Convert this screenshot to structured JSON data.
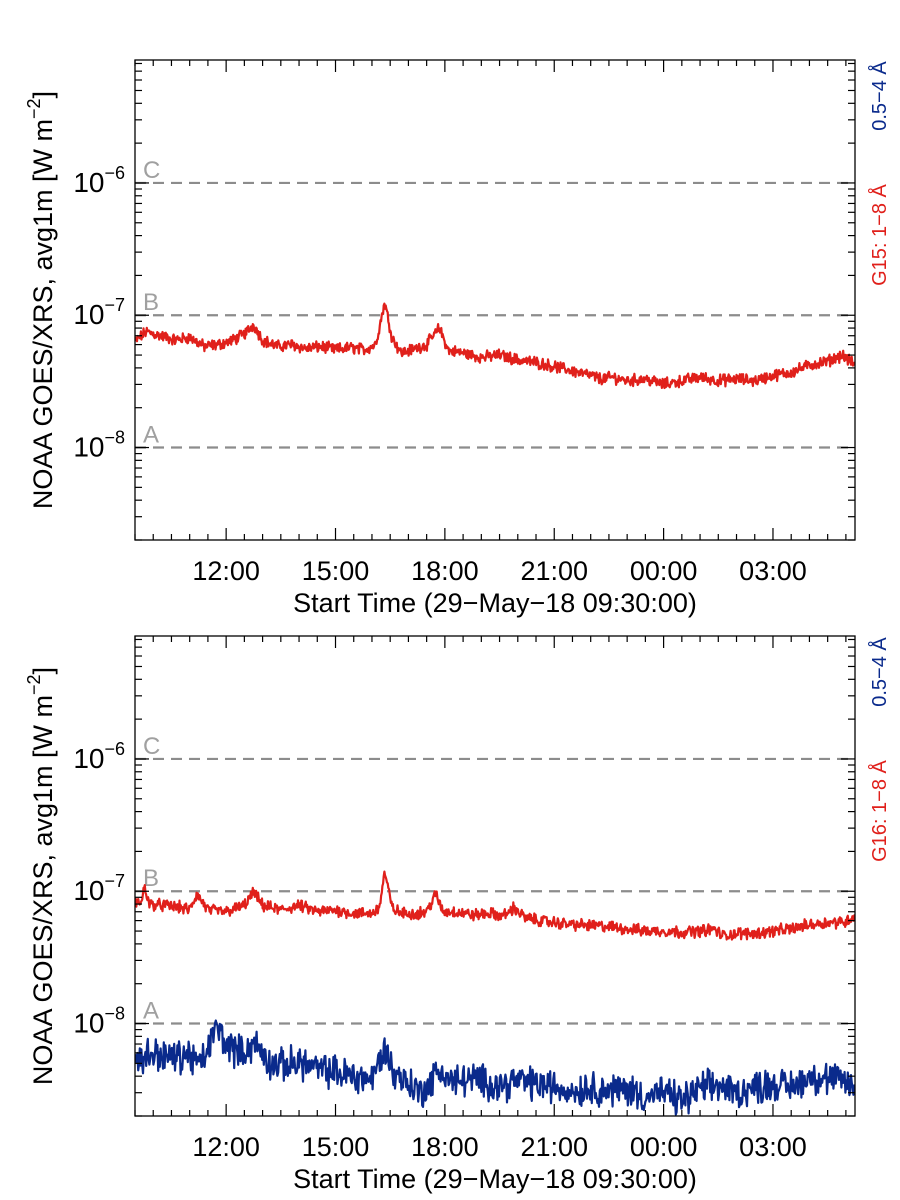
{
  "chart_data": [
    {
      "type": "line",
      "ylabel_main": "NOAA GOES/XRS, avg1m [W m",
      "ylabel_sup": "−2",
      "ylabel_end": "]",
      "xlabel": "Start Time (29−May−18 09:30:00)",
      "y_scale": "log",
      "ylim": [
        2e-09,
        8.5e-06
      ],
      "y_ticks": [
        {
          "value": 1e-08,
          "base": "10",
          "exp": "−8"
        },
        {
          "value": 1e-07,
          "base": "10",
          "exp": "−7"
        },
        {
          "value": 1e-06,
          "base": "10",
          "exp": "−6"
        }
      ],
      "x_range_hours": [
        9.5,
        29.25
      ],
      "x_ticks": [
        {
          "hour": 12,
          "label": "12:00"
        },
        {
          "hour": 15,
          "label": "15:00"
        },
        {
          "hour": 18,
          "label": "18:00"
        },
        {
          "hour": 21,
          "label": "21:00"
        },
        {
          "hour": 24,
          "label": "00:00"
        },
        {
          "hour": 27,
          "label": "03:00"
        }
      ],
      "thresholds": [
        {
          "label": "A",
          "value": 1e-08
        },
        {
          "label": "B",
          "value": 1e-07
        },
        {
          "label": "C",
          "value": 1e-06
        }
      ],
      "legend": [
        {
          "text": "0.5−4 Å",
          "color": "#0a2a8c"
        },
        {
          "text": "G15: 1−8 Å",
          "color": "#e0201b"
        }
      ],
      "series": [
        {
          "name": "G15: 1−8 Å",
          "color": "#e0201b",
          "x": [
            9.5,
            9.8,
            10.2,
            10.6,
            11.0,
            11.4,
            11.8,
            12.2,
            12.5,
            12.75,
            13.0,
            13.4,
            13.8,
            14.2,
            14.6,
            15.0,
            15.4,
            15.8,
            16.1,
            16.35,
            16.55,
            16.8,
            17.1,
            17.5,
            17.85,
            18.1,
            18.5,
            19.0,
            19.5,
            20.0,
            20.5,
            21.0,
            21.5,
            22.0,
            22.3,
            22.6,
            23.0,
            23.5,
            24.0,
            24.5,
            25.0,
            25.5,
            26.0,
            26.5,
            27.0,
            27.5,
            28.0,
            28.5,
            28.9,
            29.25
          ],
          "y": [
            6.3e-08,
            7.5e-08,
            7e-08,
            6.5e-08,
            6.8e-08,
            5.8e-08,
            6e-08,
            6.5e-08,
            7.2e-08,
            8.5e-08,
            6.5e-08,
            5.8e-08,
            6e-08,
            5.6e-08,
            5.8e-08,
            5.5e-08,
            5.7e-08,
            5.5e-08,
            6e-08,
            1.25e-07,
            6.8e-08,
            5.2e-08,
            5.5e-08,
            6e-08,
            8e-08,
            5.4e-08,
            5.2e-08,
            4.8e-08,
            5e-08,
            4.6e-08,
            4.4e-08,
            4.1e-08,
            3.8e-08,
            3.5e-08,
            3.3e-08,
            3.4e-08,
            3.2e-08,
            3.3e-08,
            3e-08,
            3.2e-08,
            3.4e-08,
            3.2e-08,
            3.3e-08,
            3.2e-08,
            3.5e-08,
            3.7e-08,
            4.2e-08,
            4.5e-08,
            5e-08,
            4.2e-08
          ]
        }
      ]
    },
    {
      "type": "line",
      "ylabel_main": "NOAA GOES/XRS, avg1m [W m",
      "ylabel_sup": "−2",
      "ylabel_end": "]",
      "xlabel": "Start Time (29−May−18 09:30:00)",
      "y_scale": "log",
      "ylim": [
        2e-09,
        8.5e-06
      ],
      "y_ticks": [
        {
          "value": 1e-08,
          "base": "10",
          "exp": "−8"
        },
        {
          "value": 1e-07,
          "base": "10",
          "exp": "−7"
        },
        {
          "value": 1e-06,
          "base": "10",
          "exp": "−6"
        }
      ],
      "x_range_hours": [
        9.5,
        29.25
      ],
      "x_ticks": [
        {
          "hour": 12,
          "label": "12:00"
        },
        {
          "hour": 15,
          "label": "15:00"
        },
        {
          "hour": 18,
          "label": "18:00"
        },
        {
          "hour": 21,
          "label": "21:00"
        },
        {
          "hour": 24,
          "label": "00:00"
        },
        {
          "hour": 27,
          "label": "03:00"
        }
      ],
      "thresholds": [
        {
          "label": "A",
          "value": 1e-08
        },
        {
          "label": "B",
          "value": 1e-07
        },
        {
          "label": "C",
          "value": 1e-06
        }
      ],
      "legend": [
        {
          "text": "0.5−4 Å",
          "color": "#0a2a8c"
        },
        {
          "text": "G16: 1−8 Å",
          "color": "#e0201b"
        }
      ],
      "series": [
        {
          "name": "G16: 1−8 Å",
          "color": "#e0201b",
          "x": [
            9.5,
            9.7,
            9.75,
            9.9,
            10.3,
            10.7,
            11.0,
            11.2,
            11.5,
            12.0,
            12.5,
            12.75,
            13.0,
            13.5,
            14.0,
            14.5,
            15.0,
            15.5,
            16.0,
            16.2,
            16.35,
            16.55,
            16.8,
            17.2,
            17.5,
            17.75,
            17.95,
            18.3,
            18.8,
            19.2,
            19.6,
            19.9,
            20.2,
            20.6,
            21.0,
            21.5,
            22.0,
            22.5,
            23.0,
            23.5,
            24.0,
            24.5,
            25.0,
            25.4,
            25.6,
            26.0,
            26.5,
            27.0,
            27.5,
            28.0,
            28.5,
            29.0,
            29.25
          ],
          "y": [
            8e-08,
            8.5e-08,
            1.1e-07,
            8e-08,
            7.8e-08,
            7.6e-08,
            7.2e-08,
            9.5e-08,
            7.2e-08,
            7e-08,
            7.8e-08,
            9.8e-08,
            7.8e-08,
            7.2e-08,
            7.8e-08,
            7e-08,
            7.2e-08,
            6.8e-08,
            6.8e-08,
            7.5e-08,
            1.4e-07,
            7.5e-08,
            6.8e-08,
            6.8e-08,
            7e-08,
            9.5e-08,
            7e-08,
            7e-08,
            6.6e-08,
            6.8e-08,
            6.5e-08,
            7.5e-08,
            6.3e-08,
            6e-08,
            5.8e-08,
            5.6e-08,
            5.5e-08,
            5.4e-08,
            5.2e-08,
            5e-08,
            5e-08,
            4.9e-08,
            5e-08,
            5.2e-08,
            4.6e-08,
            4.8e-08,
            4.8e-08,
            5e-08,
            5.2e-08,
            5.6e-08,
            5.8e-08,
            5.9e-08,
            6.5e-08
          ]
        },
        {
          "name": "0.5−4 Å",
          "color": "#0a2a8c",
          "x": [
            9.5,
            10.0,
            10.5,
            11.0,
            11.3,
            11.6,
            11.75,
            12.0,
            12.4,
            12.8,
            13.2,
            13.6,
            14.0,
            14.5,
            15.0,
            15.5,
            16.0,
            16.35,
            16.6,
            17.0,
            17.3,
            17.6,
            17.85,
            18.2,
            18.6,
            19.0,
            19.5,
            20.0,
            20.5,
            21.0,
            21.5,
            22.0,
            22.5,
            23.0,
            23.5,
            24.0,
            24.5,
            25.0,
            25.5,
            26.0,
            26.5,
            27.0,
            27.5,
            28.0,
            28.5,
            29.0,
            29.25
          ],
          "y": [
            5.2e-09,
            6e-09,
            5.5e-09,
            5.8e-09,
            4.8e-09,
            7.5e-09,
            9.5e-09,
            7e-09,
            6e-09,
            7e-09,
            5e-09,
            4.8e-09,
            5.2e-09,
            4.5e-09,
            4.3e-09,
            4e-09,
            3.8e-09,
            6.5e-09,
            4.2e-09,
            3.6e-09,
            3e-09,
            3.5e-09,
            4.5e-09,
            3.6e-09,
            3.8e-09,
            3.7e-09,
            3.4e-09,
            3.7e-09,
            3.5e-09,
            3.3e-09,
            3.1e-09,
            3.3e-09,
            3.1e-09,
            3.2e-09,
            2.8e-09,
            3e-09,
            2.6e-09,
            3.2e-09,
            3.4e-09,
            3e-09,
            3.3e-09,
            3.5e-09,
            3.3e-09,
            4e-09,
            3.8e-09,
            3.6e-09,
            3.3e-09
          ]
        }
      ]
    }
  ]
}
